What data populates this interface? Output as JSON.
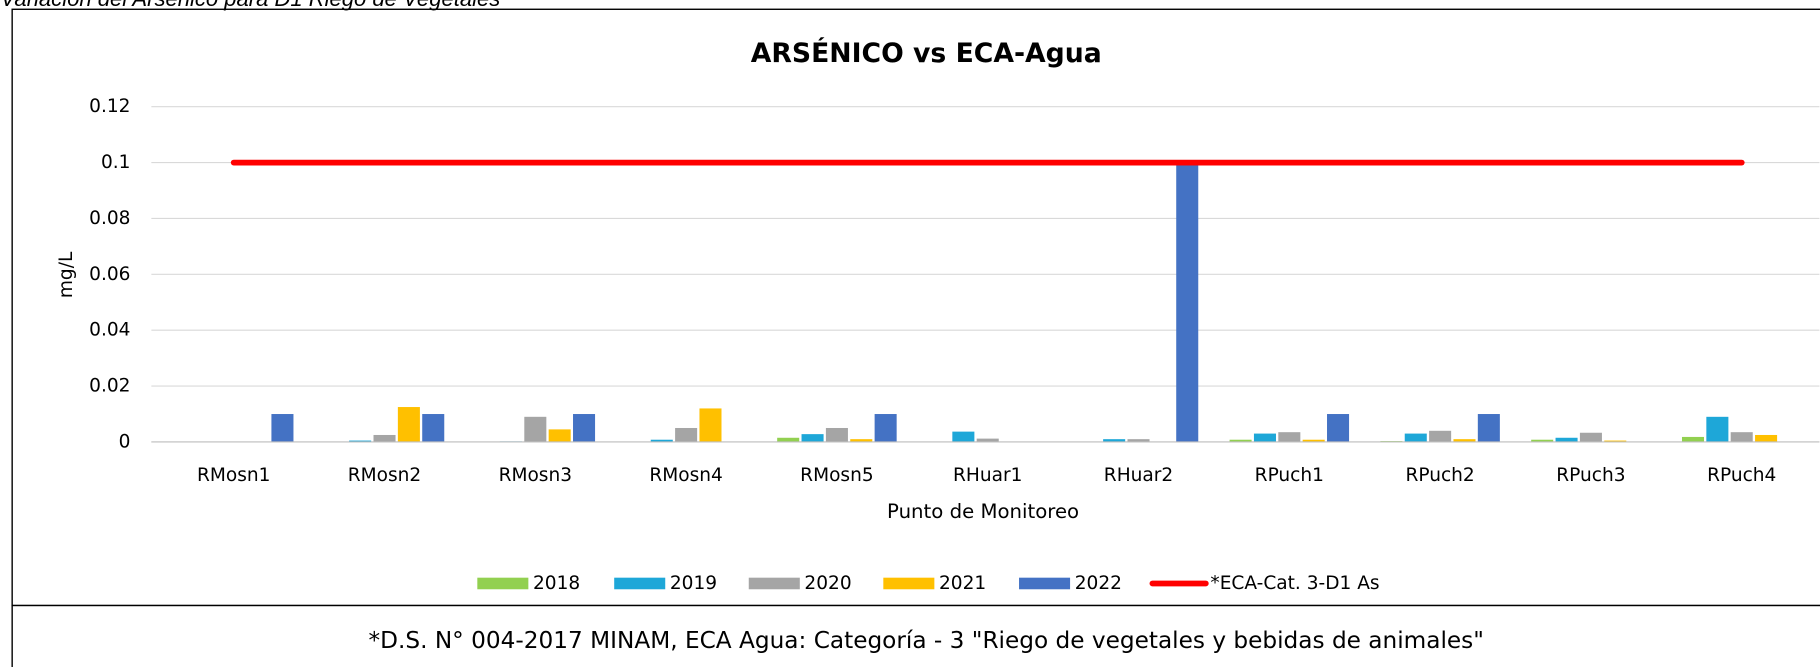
{
  "chart_data": {
    "type": "bar",
    "caption": "Variación del Arsénico para D1 Riego de Vegetales",
    "title": "ARSÉNICO vs ECA-Agua",
    "xlabel": "Punto de Monitoreo",
    "ylabel": "mg/L",
    "footnote": "*D.S. N° 004-2017 MINAM, ECA Agua: Categoría - 3 \"Riego de vegetales y bebidas de animales\"",
    "categories": [
      "RMosn1",
      "RMosn2",
      "RMosn3",
      "RMosn4",
      "RMosn5",
      "RHuar1",
      "RHuar2",
      "RPuch1",
      "RPuch2",
      "RPuch3",
      "RPuch4"
    ],
    "series": [
      {
        "name": "2018",
        "color": "#92d050",
        "values": [
          null,
          null,
          null,
          null,
          0.0015,
          null,
          null,
          0.0008,
          0.0003,
          0.0008,
          0.0018
        ]
      },
      {
        "name": "2019",
        "color": "#1ea7d8",
        "values": [
          null,
          0.0005,
          0.0002,
          0.0008,
          0.0028,
          0.0037,
          0.001,
          0.003,
          0.003,
          0.0015,
          0.009
        ]
      },
      {
        "name": "2020",
        "color": "#a5a5a5",
        "values": [
          null,
          0.0025,
          0.009,
          0.005,
          0.005,
          0.0012,
          0.001,
          0.0035,
          0.004,
          0.0033,
          0.0035
        ]
      },
      {
        "name": "2021",
        "color": "#ffc000",
        "values": [
          null,
          0.0125,
          0.0045,
          0.012,
          0.001,
          null,
          null,
          0.0008,
          0.001,
          0.0005,
          0.0025
        ]
      },
      {
        "name": "2022",
        "color": "#4472c4",
        "values": [
          0.01,
          0.01,
          0.01,
          null,
          0.01,
          null,
          0.1,
          0.01,
          0.01,
          null,
          null
        ]
      },
      {
        "name": "*ECA-Cat. 3-D1 As",
        "type": "line",
        "color": "#ff0000",
        "values": [
          0.1,
          0.1,
          0.1,
          0.1,
          0.1,
          0.1,
          0.1,
          0.1,
          0.1,
          0.1,
          0.1
        ]
      }
    ],
    "ylim": [
      0,
      0.12
    ],
    "yticks": [
      0,
      0.02,
      0.04,
      0.06,
      0.08,
      0.1,
      0.12
    ],
    "grid": true
  }
}
